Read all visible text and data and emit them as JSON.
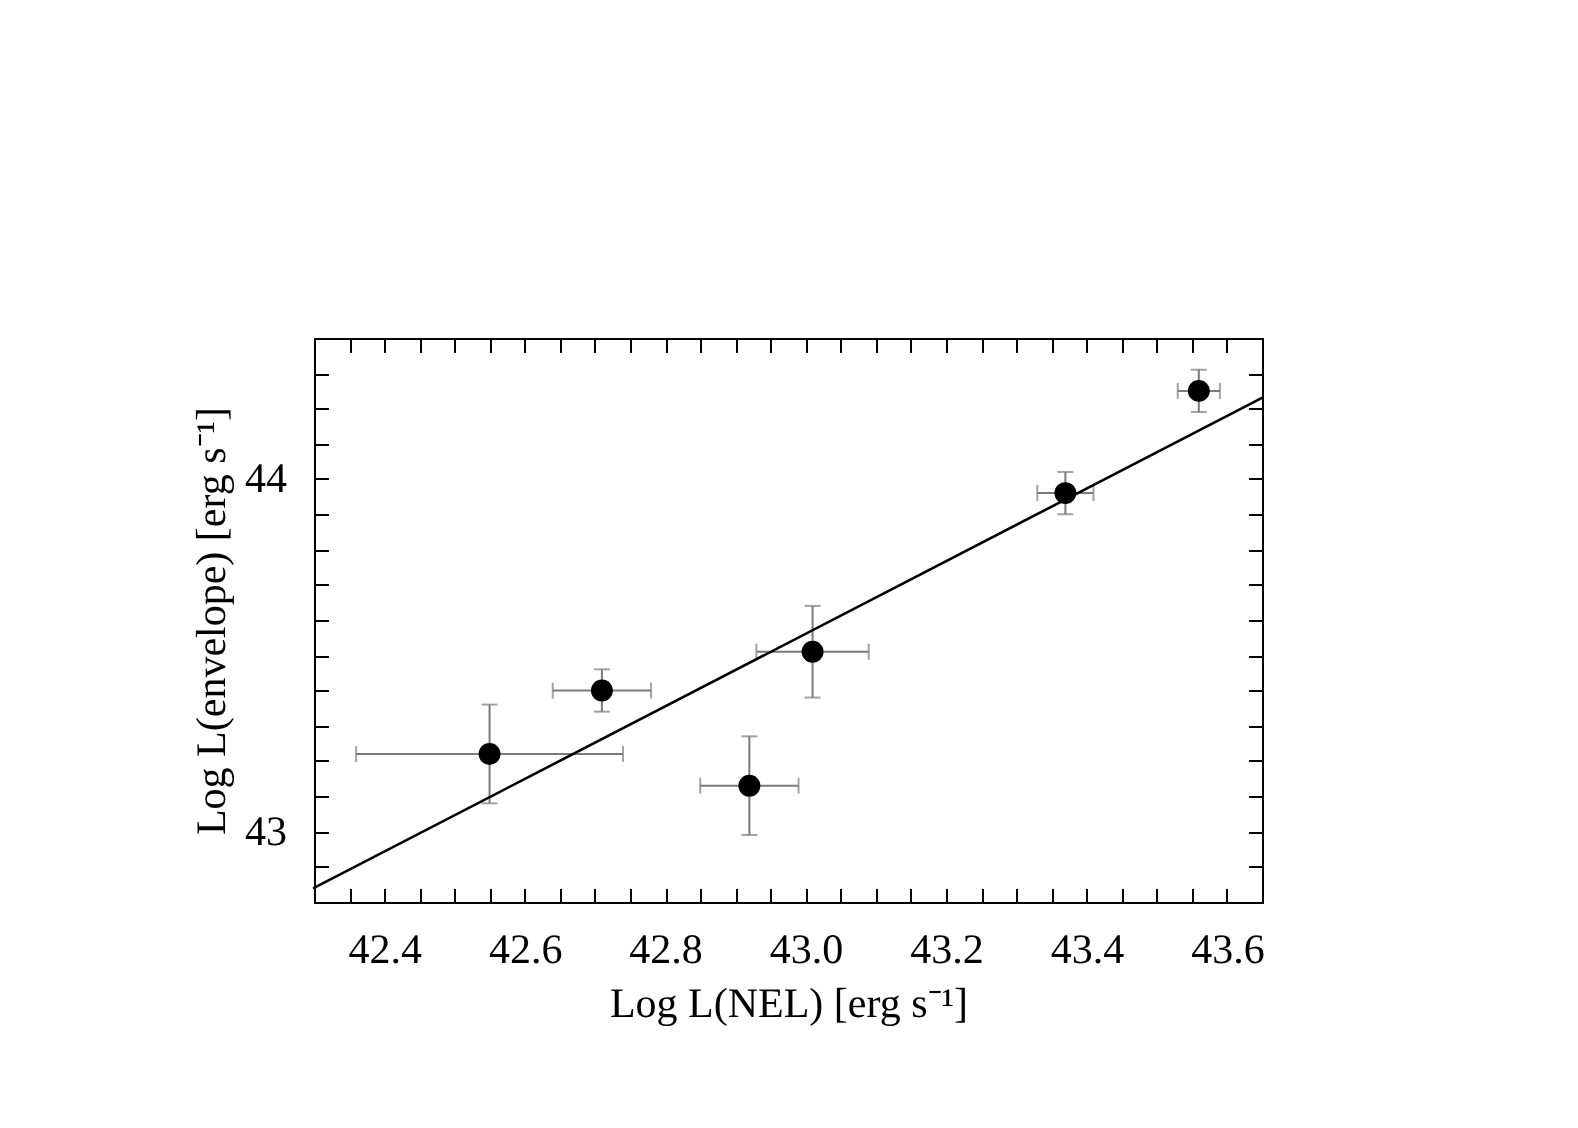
{
  "chart_data": {
    "type": "scatter",
    "xlabel": "Log L(NEL) [erg s⁻¹]",
    "ylabel": "Log L(envelope) [erg s⁻¹]",
    "xlim": [
      42.3,
      43.65
    ],
    "ylim": [
      42.8,
      44.4
    ],
    "xticks": [
      {
        "value": 42.35,
        "label": null
      },
      42.4,
      {
        "value": 42.45,
        "label": null
      },
      {
        "value": 42.5,
        "label": null
      },
      {
        "value": 42.55,
        "label": null
      },
      42.6,
      {
        "value": 42.65,
        "label": null
      },
      {
        "value": 42.7,
        "label": null
      },
      {
        "value": 42.75,
        "label": null
      },
      42.8,
      {
        "value": 42.85,
        "label": null
      },
      {
        "value": 42.9,
        "label": null
      },
      {
        "value": 42.95,
        "label": null
      },
      {
        "value": 43,
        "label": "43.0"
      },
      {
        "value": 43.05,
        "label": null
      },
      {
        "value": 43.1,
        "label": null
      },
      {
        "value": 43.15,
        "label": null
      },
      43.2,
      {
        "value": 43.25,
        "label": null
      },
      {
        "value": 43.3,
        "label": null
      },
      {
        "value": 43.35,
        "label": null
      },
      43.4,
      {
        "value": 43.45,
        "label": null
      },
      {
        "value": 43.5,
        "label": null
      },
      {
        "value": 43.55,
        "label": null
      },
      43.6
    ],
    "yticks": [
      {
        "value": 42.9,
        "label": null
      },
      43,
      {
        "value": 43.1,
        "label": null
      },
      {
        "value": 43.2,
        "label": null
      },
      {
        "value": 43.3,
        "label": null
      },
      {
        "value": 43.4,
        "label": null
      },
      {
        "value": 43.5,
        "label": null
      },
      {
        "value": 43.6,
        "label": null
      },
      {
        "value": 43.7,
        "label": null
      },
      {
        "value": 43.8,
        "label": null
      },
      {
        "value": 43.9,
        "label": null
      },
      44,
      {
        "value": 44.1,
        "label": null
      },
      {
        "value": 44.2,
        "label": null
      },
      {
        "value": 44.3,
        "label": null
      }
    ],
    "grid": false,
    "series": [
      {
        "color": "#000000",
        "marker": "circle",
        "x": [
          42.55,
          42.71,
          42.92,
          43.01,
          43.37,
          43.56
        ],
        "values": [
          43.22,
          43.4,
          43.13,
          43.51,
          43.96,
          44.25
        ],
        "xerrors": [
          0.19,
          0.07,
          0.07,
          0.08,
          0.04,
          0.03
        ],
        "errors": [
          0.14,
          0.06,
          0.14,
          0.13,
          0.06,
          0.06
        ]
      },
      {
        "type": "line",
        "color": "#000000",
        "marker": "none",
        "line_style": "solid",
        "x": [
          42.3,
          43.65
        ],
        "values": [
          42.84,
          44.23
        ]
      }
    ]
  }
}
